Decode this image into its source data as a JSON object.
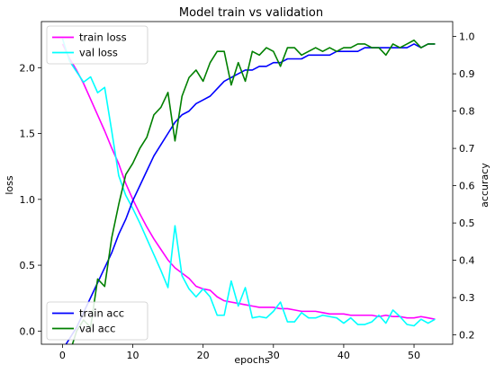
{
  "chart_data": {
    "type": "line",
    "title": "Model train vs validation",
    "xlabel": "epochs",
    "ylabel_left": "loss",
    "ylabel_right": "accuracy",
    "xlim": [
      -3,
      55.5
    ],
    "ylim_left": [
      -0.1,
      2.35
    ],
    "ylim_right": [
      0.175,
      1.04
    ],
    "x_ticks": [
      0,
      10,
      20,
      30,
      40,
      50
    ],
    "y_ticks_left": [
      0.0,
      0.5,
      1.0,
      1.5,
      2.0
    ],
    "y_ticks_right": [
      0.2,
      0.3,
      0.4,
      0.5,
      0.6,
      0.7,
      0.8,
      0.9,
      1.0
    ],
    "grid": false,
    "legends": [
      {
        "placement": "top-left",
        "axis": "left",
        "entries": [
          "train loss",
          "val loss"
        ]
      },
      {
        "placement": "bottom-left",
        "axis": "right",
        "entries": [
          "train acc",
          "val acc"
        ]
      }
    ],
    "series": [
      {
        "name": "train loss",
        "axis": "left",
        "color": "#ff00ff",
        "x": [
          0,
          1,
          2,
          3,
          4,
          5,
          6,
          7,
          8,
          9,
          10,
          11,
          12,
          13,
          14,
          15,
          16,
          17,
          18,
          19,
          20,
          21,
          22,
          23,
          24,
          25,
          26,
          27,
          28,
          29,
          30,
          31,
          32,
          33,
          34,
          35,
          36,
          37,
          38,
          39,
          40,
          41,
          42,
          43,
          44,
          45,
          46,
          47,
          48,
          49,
          50,
          51,
          52,
          53
        ],
        "values": [
          2.18,
          2.07,
          1.98,
          1.88,
          1.76,
          1.64,
          1.52,
          1.39,
          1.27,
          1.12,
          1.0,
          0.89,
          0.79,
          0.7,
          0.62,
          0.54,
          0.48,
          0.44,
          0.4,
          0.34,
          0.32,
          0.31,
          0.26,
          0.23,
          0.22,
          0.21,
          0.2,
          0.19,
          0.18,
          0.18,
          0.18,
          0.17,
          0.17,
          0.16,
          0.15,
          0.15,
          0.15,
          0.14,
          0.13,
          0.13,
          0.13,
          0.12,
          0.12,
          0.12,
          0.12,
          0.11,
          0.12,
          0.11,
          0.11,
          0.1,
          0.1,
          0.11,
          0.1,
          0.09
        ]
      },
      {
        "name": "val loss",
        "axis": "left",
        "color": "#00ffff",
        "x": [
          0,
          1,
          2,
          3,
          4,
          5,
          6,
          7,
          8,
          9,
          10,
          11,
          12,
          13,
          14,
          15,
          16,
          17,
          18,
          19,
          20,
          21,
          22,
          23,
          24,
          25,
          26,
          27,
          28,
          29,
          30,
          31,
          32,
          33,
          34,
          35,
          36,
          37,
          38,
          39,
          40,
          41,
          42,
          43,
          44,
          45,
          46,
          47,
          48,
          49,
          50,
          51,
          52,
          53
        ],
        "values": [
          2.22,
          2.05,
          1.97,
          1.89,
          1.93,
          1.81,
          1.85,
          1.52,
          1.18,
          1.03,
          0.93,
          0.82,
          0.7,
          0.58,
          0.46,
          0.33,
          0.8,
          0.42,
          0.32,
          0.26,
          0.32,
          0.26,
          0.12,
          0.12,
          0.38,
          0.19,
          0.33,
          0.1,
          0.11,
          0.1,
          0.15,
          0.22,
          0.07,
          0.07,
          0.14,
          0.1,
          0.1,
          0.12,
          0.11,
          0.1,
          0.06,
          0.1,
          0.05,
          0.05,
          0.07,
          0.12,
          0.06,
          0.16,
          0.11,
          0.05,
          0.04,
          0.09,
          0.06,
          0.09
        ]
      },
      {
        "name": "train acc",
        "axis": "right",
        "color": "#0000ff",
        "x": [
          0,
          1,
          2,
          3,
          4,
          5,
          6,
          7,
          8,
          9,
          10,
          11,
          12,
          13,
          14,
          15,
          16,
          17,
          18,
          19,
          20,
          21,
          22,
          23,
          24,
          25,
          26,
          27,
          28,
          29,
          30,
          31,
          32,
          33,
          34,
          35,
          36,
          37,
          38,
          39,
          40,
          41,
          42,
          43,
          44,
          45,
          46,
          47,
          48,
          49,
          50,
          51,
          52,
          53
        ],
        "values": [
          0.16,
          0.19,
          0.22,
          0.26,
          0.3,
          0.34,
          0.38,
          0.42,
          0.47,
          0.51,
          0.56,
          0.6,
          0.64,
          0.68,
          0.71,
          0.74,
          0.77,
          0.79,
          0.8,
          0.82,
          0.83,
          0.84,
          0.86,
          0.88,
          0.89,
          0.9,
          0.91,
          0.91,
          0.92,
          0.92,
          0.93,
          0.93,
          0.94,
          0.94,
          0.94,
          0.95,
          0.95,
          0.95,
          0.95,
          0.96,
          0.96,
          0.96,
          0.96,
          0.97,
          0.97,
          0.97,
          0.97,
          0.97,
          0.97,
          0.97,
          0.98,
          0.97,
          0.98,
          0.98
        ]
      },
      {
        "name": "val acc",
        "axis": "right",
        "color": "#008000",
        "x": [
          0,
          1,
          2,
          3,
          4,
          5,
          6,
          7,
          8,
          9,
          10,
          11,
          12,
          13,
          14,
          15,
          16,
          17,
          18,
          19,
          20,
          21,
          22,
          23,
          24,
          25,
          26,
          27,
          28,
          29,
          30,
          31,
          32,
          33,
          34,
          35,
          36,
          37,
          38,
          39,
          40,
          41,
          42,
          43,
          44,
          45,
          46,
          47,
          48,
          49,
          50,
          51,
          52,
          53
        ],
        "values": [
          0.15,
          0.15,
          0.21,
          0.24,
          0.22,
          0.35,
          0.33,
          0.46,
          0.55,
          0.63,
          0.66,
          0.7,
          0.73,
          0.79,
          0.81,
          0.85,
          0.72,
          0.84,
          0.89,
          0.91,
          0.88,
          0.93,
          0.96,
          0.96,
          0.87,
          0.93,
          0.88,
          0.96,
          0.95,
          0.97,
          0.96,
          0.92,
          0.97,
          0.97,
          0.95,
          0.96,
          0.97,
          0.96,
          0.97,
          0.96,
          0.97,
          0.97,
          0.98,
          0.98,
          0.97,
          0.97,
          0.95,
          0.98,
          0.97,
          0.98,
          0.99,
          0.97,
          0.98,
          0.98
        ]
      }
    ]
  }
}
